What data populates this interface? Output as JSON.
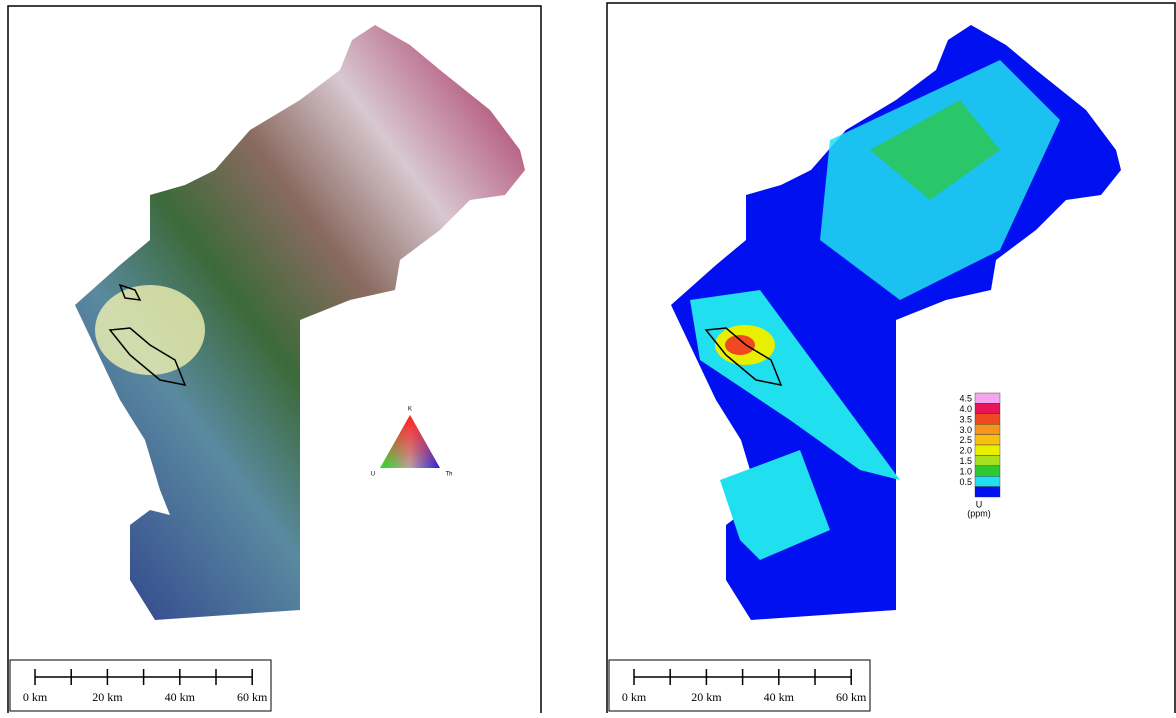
{
  "left_map": {
    "ternary_legend": {
      "top": "K",
      "left": "U",
      "right": "Th"
    },
    "scale_bar": [
      "0 km",
      "20 km",
      "40 km",
      "60 km"
    ]
  },
  "right_map": {
    "legend": {
      "labels": [
        "4.5",
        "4.0",
        "3.5",
        "3.0",
        "2.5",
        "2.0",
        "1.5",
        "1.0",
        "0.5"
      ],
      "colors": [
        "#f6a6ee",
        "#e8145a",
        "#f04820",
        "#f7941d",
        "#f7c010",
        "#e8f000",
        "#a8e020",
        "#30c830",
        "#20e0f0",
        "#0010f0"
      ],
      "title": "U",
      "unit": "(ppm)"
    },
    "scale_bar": [
      "0 km",
      "20 km",
      "40 km",
      "60 km"
    ]
  }
}
